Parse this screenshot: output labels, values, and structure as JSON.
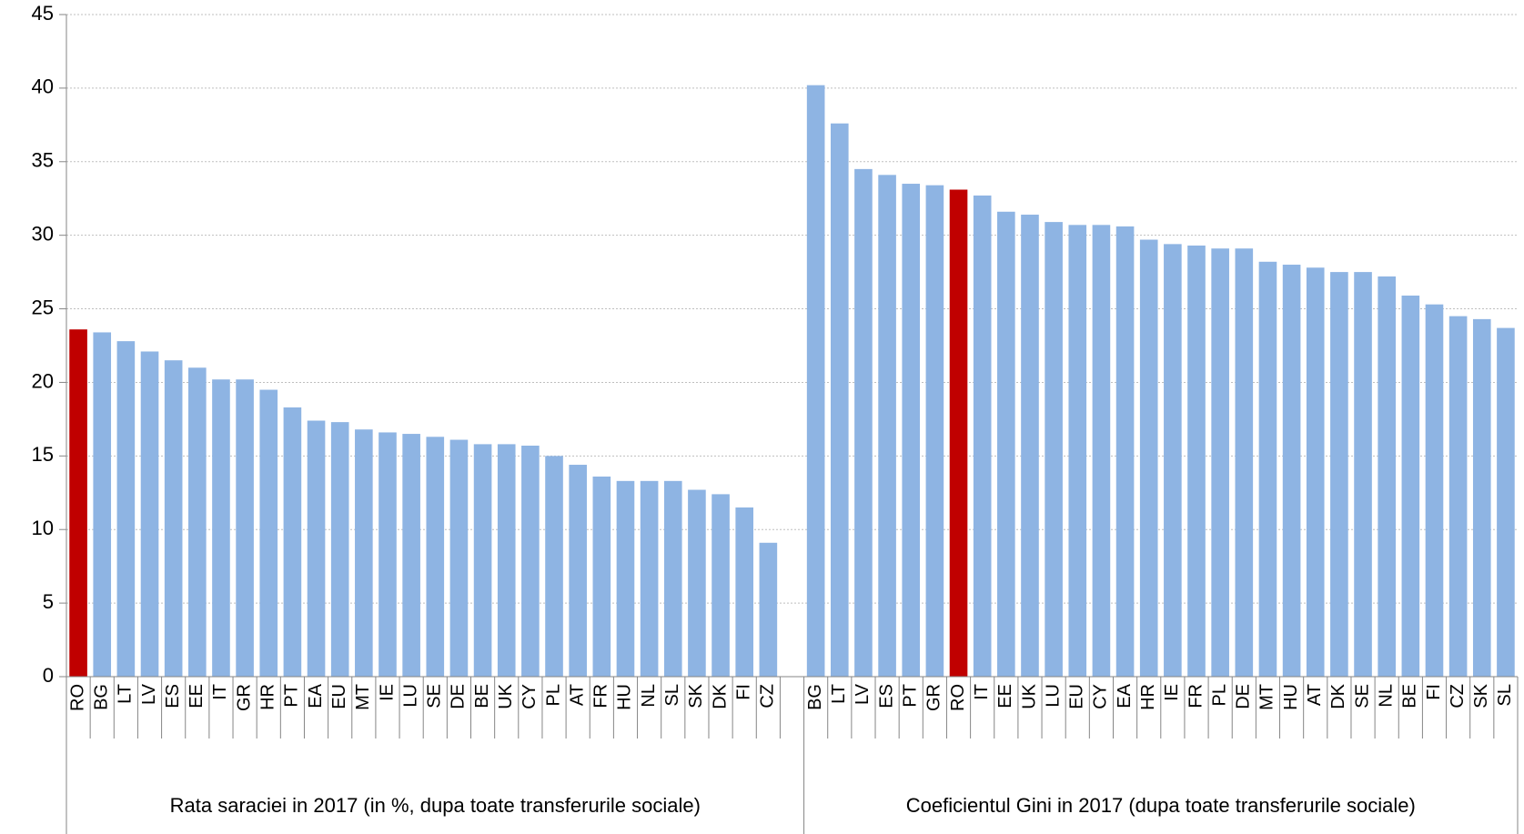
{
  "chart_data": {
    "type": "bar",
    "ylim": [
      0,
      45
    ],
    "yticks": [
      0,
      5,
      10,
      15,
      20,
      25,
      30,
      35,
      40,
      45
    ],
    "grid": true,
    "groups": [
      {
        "label": "Rata saraciei in 2017 (in %, dupa toate transferurile sociale)",
        "categories": [
          "RO",
          "BG",
          "LT",
          "LV",
          "ES",
          "EE",
          "IT",
          "GR",
          "HR",
          "PT",
          "EA",
          "EU",
          "MT",
          "IE",
          "LU",
          "SE",
          "DE",
          "BE",
          "UK",
          "CY",
          "PL",
          "AT",
          "FR",
          "HU",
          "NL",
          "SL",
          "SK",
          "DK",
          "FI",
          "CZ"
        ],
        "values": [
          23.6,
          23.4,
          22.8,
          22.1,
          21.5,
          21.0,
          20.2,
          20.2,
          19.5,
          18.3,
          17.4,
          17.3,
          16.8,
          16.6,
          16.5,
          16.3,
          16.1,
          15.8,
          15.8,
          15.7,
          15.0,
          14.4,
          13.6,
          13.3,
          13.3,
          13.3,
          12.7,
          12.4,
          11.5,
          9.1
        ],
        "colors": [
          "#c00000",
          "#8eb4e3",
          "#8eb4e3",
          "#8eb4e3",
          "#8eb4e3",
          "#8eb4e3",
          "#8eb4e3",
          "#8eb4e3",
          "#8eb4e3",
          "#8eb4e3",
          "#8eb4e3",
          "#8eb4e3",
          "#8eb4e3",
          "#8eb4e3",
          "#8eb4e3",
          "#8eb4e3",
          "#8eb4e3",
          "#8eb4e3",
          "#8eb4e3",
          "#8eb4e3",
          "#8eb4e3",
          "#8eb4e3",
          "#8eb4e3",
          "#8eb4e3",
          "#8eb4e3",
          "#8eb4e3",
          "#8eb4e3",
          "#8eb4e3",
          "#8eb4e3",
          "#8eb4e3"
        ]
      },
      {
        "label": "Coeficientul Gini in 2017 (dupa toate transferurile sociale)",
        "categories": [
          "BG",
          "LT",
          "LV",
          "ES",
          "PT",
          "GR",
          "RO",
          "IT",
          "EE",
          "UK",
          "LU",
          "EU",
          "CY",
          "EA",
          "HR",
          "IE",
          "FR",
          "PL",
          "DE",
          "MT",
          "HU",
          "AT",
          "DK",
          "SE",
          "NL",
          "BE",
          "FI",
          "CZ",
          "SK",
          "SL"
        ],
        "values": [
          40.2,
          37.6,
          34.5,
          34.1,
          33.5,
          33.4,
          33.1,
          32.7,
          31.6,
          31.4,
          30.9,
          30.7,
          30.7,
          30.6,
          29.7,
          29.4,
          29.3,
          29.1,
          29.1,
          28.2,
          28.0,
          27.8,
          27.5,
          27.5,
          27.2,
          25.9,
          25.3,
          24.5,
          24.3,
          23.7
        ],
        "colors": [
          "#8eb4e3",
          "#8eb4e3",
          "#8eb4e3",
          "#8eb4e3",
          "#8eb4e3",
          "#8eb4e3",
          "#c00000",
          "#8eb4e3",
          "#8eb4e3",
          "#8eb4e3",
          "#8eb4e3",
          "#8eb4e3",
          "#8eb4e3",
          "#8eb4e3",
          "#8eb4e3",
          "#8eb4e3",
          "#8eb4e3",
          "#8eb4e3",
          "#8eb4e3",
          "#8eb4e3",
          "#8eb4e3",
          "#8eb4e3",
          "#8eb4e3",
          "#8eb4e3",
          "#8eb4e3",
          "#8eb4e3",
          "#8eb4e3",
          "#8eb4e3",
          "#8eb4e3",
          "#8eb4e3"
        ]
      }
    ]
  }
}
